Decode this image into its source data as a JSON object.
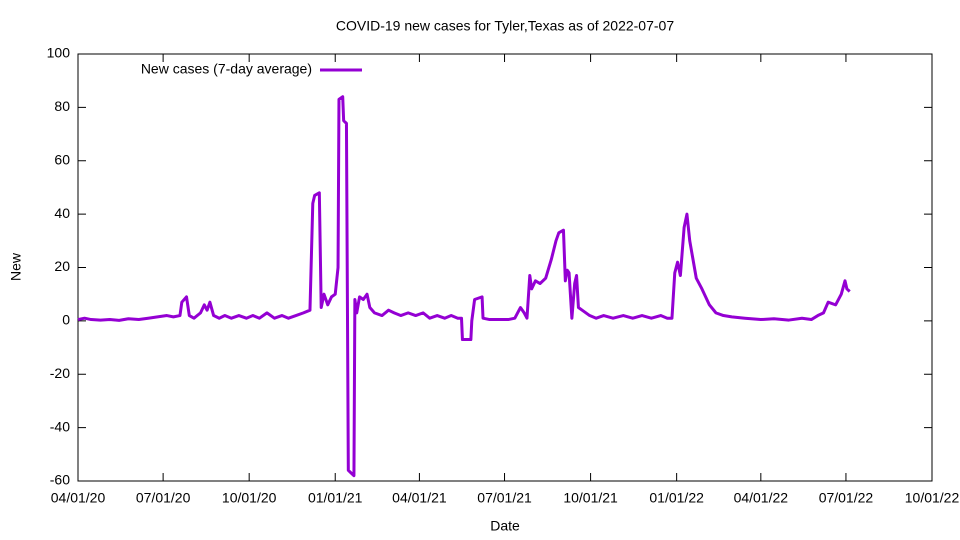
{
  "chart_data": {
    "type": "line",
    "title": "COVID-19 new cases for Tyler,Texas as of 2022-07-07",
    "x_label": "Date",
    "y_label": "New",
    "x": [
      "2020-04-01",
      "2020-04-08",
      "2020-04-15",
      "2020-04-25",
      "2020-05-05",
      "2020-05-15",
      "2020-05-25",
      "2020-06-05",
      "2020-06-15",
      "2020-06-25",
      "2020-07-05",
      "2020-07-12",
      "2020-07-19",
      "2020-07-21",
      "2020-07-26",
      "2020-07-29",
      "2020-08-03",
      "2020-08-10",
      "2020-08-14",
      "2020-08-17",
      "2020-08-20",
      "2020-08-24",
      "2020-08-30",
      "2020-09-05",
      "2020-09-12",
      "2020-09-20",
      "2020-09-28",
      "2020-10-05",
      "2020-10-12",
      "2020-10-20",
      "2020-10-28",
      "2020-11-05",
      "2020-11-12",
      "2020-11-20",
      "2020-11-28",
      "2020-12-05",
      "2020-12-08",
      "2020-12-10",
      "2020-12-15",
      "2020-12-17",
      "2020-12-20",
      "2020-12-24",
      "2020-12-28",
      "2021-01-01",
      "2021-01-04",
      "2021-01-05",
      "2021-01-09",
      "2021-01-10",
      "2021-01-13",
      "2021-01-15",
      "2021-01-18",
      "2021-01-21",
      "2021-01-22",
      "2021-01-24",
      "2021-01-27",
      "2021-01-31",
      "2021-02-04",
      "2021-02-07",
      "2021-02-12",
      "2021-02-20",
      "2021-02-27",
      "2021-03-05",
      "2021-03-12",
      "2021-03-20",
      "2021-03-28",
      "2021-04-05",
      "2021-04-12",
      "2021-04-20",
      "2021-04-28",
      "2021-05-05",
      "2021-05-12",
      "2021-05-16",
      "2021-05-17",
      "2021-05-26",
      "2021-05-27",
      "2021-05-30",
      "2021-06-07",
      "2021-06-08",
      "2021-06-15",
      "2021-06-25",
      "2021-07-05",
      "2021-07-12",
      "2021-07-18",
      "2021-07-22",
      "2021-07-25",
      "2021-07-28",
      "2021-07-30",
      "2021-08-03",
      "2021-08-08",
      "2021-08-14",
      "2021-08-20",
      "2021-08-25",
      "2021-08-28",
      "2021-09-02",
      "2021-09-04",
      "2021-09-06",
      "2021-09-08",
      "2021-09-11",
      "2021-09-14",
      "2021-09-16",
      "2021-09-18",
      "2021-09-22",
      "2021-09-30",
      "2021-10-07",
      "2021-10-15",
      "2021-10-25",
      "2021-11-05",
      "2021-11-15",
      "2021-11-25",
      "2021-12-05",
      "2021-12-15",
      "2021-12-22",
      "2021-12-27",
      "2021-12-30",
      "2022-01-02",
      "2022-01-05",
      "2022-01-09",
      "2022-01-12",
      "2022-01-15",
      "2022-01-18",
      "2022-01-22",
      "2022-01-28",
      "2022-02-05",
      "2022-02-12",
      "2022-02-20",
      "2022-03-01",
      "2022-03-15",
      "2022-04-01",
      "2022-04-15",
      "2022-05-01",
      "2022-05-15",
      "2022-05-25",
      "2022-06-01",
      "2022-06-07",
      "2022-06-12",
      "2022-06-20",
      "2022-06-26",
      "2022-06-30",
      "2022-07-02",
      "2022-07-05"
    ],
    "series": [
      {
        "name": "New cases (7-day average)",
        "color": "#9400d3",
        "values": [
          0.5,
          1,
          0.5,
          0.3,
          0.5,
          0.2,
          0.8,
          0.5,
          1,
          1.5,
          2,
          1.5,
          2,
          7,
          9,
          2,
          1,
          3,
          6,
          4,
          7,
          2,
          1,
          2,
          1,
          2,
          1,
          2,
          1,
          3,
          1,
          2,
          1,
          2,
          3,
          4,
          44,
          47,
          48,
          5,
          10,
          6,
          9,
          10,
          20,
          83,
          84,
          75,
          74,
          -56,
          -57,
          -58,
          8,
          3,
          9,
          8,
          10,
          5,
          3,
          2,
          4,
          3,
          2,
          3,
          2,
          3,
          1,
          2,
          1,
          2,
          1,
          1,
          -7,
          -7,
          0,
          8,
          9,
          1,
          0.5,
          0.5,
          0.5,
          1,
          5,
          3,
          1,
          17,
          12,
          15,
          14,
          16,
          23,
          30,
          33,
          34,
          15,
          19,
          18,
          1,
          14,
          17,
          5,
          4,
          2,
          1,
          2,
          1,
          2,
          1,
          2,
          1,
          2,
          1,
          1,
          18,
          22,
          17,
          35,
          40,
          30,
          24,
          16,
          12,
          6,
          3,
          2,
          1.5,
          1,
          0.5,
          0.8,
          0.3,
          1,
          0.5,
          2,
          3,
          7,
          6,
          10,
          15,
          12,
          11
        ]
      }
    ],
    "xlim": [
      "2020-04-01",
      "2022-10-01"
    ],
    "xticks": [
      {
        "value": "2020-04-01",
        "label": "04/01/20"
      },
      {
        "value": "2020-07-01",
        "label": "07/01/20"
      },
      {
        "value": "2020-10-01",
        "label": "10/01/20"
      },
      {
        "value": "2021-01-01",
        "label": "01/01/21"
      },
      {
        "value": "2021-04-01",
        "label": "04/01/21"
      },
      {
        "value": "2021-07-01",
        "label": "07/01/21"
      },
      {
        "value": "2021-10-01",
        "label": "10/01/21"
      },
      {
        "value": "2022-01-01",
        "label": "01/01/22"
      },
      {
        "value": "2022-04-01",
        "label": "04/01/22"
      },
      {
        "value": "2022-07-01",
        "label": "07/01/22"
      },
      {
        "value": "2022-10-01",
        "label": "10/01/22"
      }
    ],
    "ylim": [
      -60,
      100
    ],
    "yticks": [
      -60,
      -40,
      -20,
      0,
      20,
      40,
      60,
      80,
      100
    ],
    "legend": "top-left",
    "grid": false
  }
}
